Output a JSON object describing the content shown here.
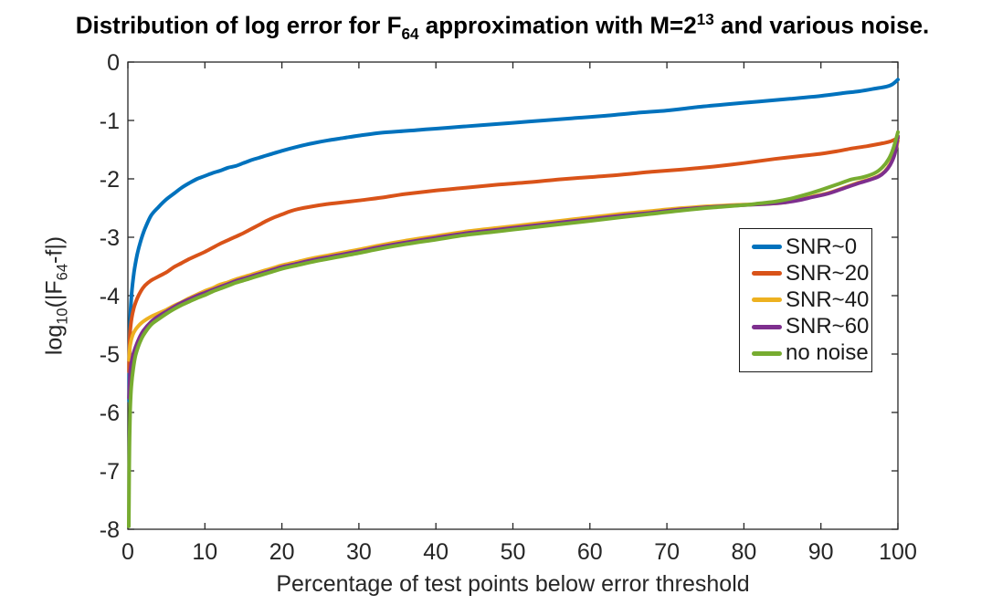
{
  "figure": {
    "title": {
      "pre": "Distribution of log error for F",
      "sub1": "64",
      "mid": " approximation with M=2",
      "sup1": "13",
      "post": " and various noise."
    },
    "xlabel": "Percentage of test points below error threshold",
    "ylabel": {
      "pre": "log",
      "sub1": "10",
      "mid": "(|F",
      "sub2": "64",
      "post": "-f|)"
    },
    "axis_color": "#262626",
    "background": "#ffffff"
  },
  "chart_data": {
    "type": "line",
    "title": "Distribution of log error for F_64 approximation with M=2^13 and various noise.",
    "xlabel": "Percentage of test points below error threshold",
    "ylabel": "log_10(|F_64-f|)",
    "xlim": [
      0,
      100
    ],
    "ylim": [
      -8,
      0
    ],
    "xticks": [
      0,
      10,
      20,
      30,
      40,
      50,
      60,
      70,
      80,
      90,
      100
    ],
    "yticks": [
      0,
      -1,
      -2,
      -3,
      -4,
      -5,
      -6,
      -7,
      -8
    ],
    "grid": false,
    "legend_position": "inside-right-middle",
    "line_width": 4,
    "series": [
      {
        "name": "SNR~0",
        "color": "#0072BD",
        "points": [
          [
            0.15,
            -5.8
          ],
          [
            0.2,
            -5.0
          ],
          [
            0.3,
            -4.4
          ],
          [
            0.5,
            -3.95
          ],
          [
            0.8,
            -3.6
          ],
          [
            1.2,
            -3.3
          ],
          [
            1.7,
            -3.05
          ],
          [
            2.2,
            -2.86
          ],
          [
            3,
            -2.63
          ],
          [
            4,
            -2.48
          ],
          [
            5,
            -2.35
          ],
          [
            6,
            -2.25
          ],
          [
            7,
            -2.15
          ],
          [
            8,
            -2.07
          ],
          [
            9,
            -2.0
          ],
          [
            10,
            -1.95
          ],
          [
            11,
            -1.9
          ],
          [
            12,
            -1.86
          ],
          [
            13,
            -1.81
          ],
          [
            14,
            -1.78
          ],
          [
            15,
            -1.73
          ],
          [
            16,
            -1.68
          ],
          [
            17,
            -1.64
          ],
          [
            18,
            -1.6
          ],
          [
            19,
            -1.56
          ],
          [
            20,
            -1.52
          ],
          [
            22,
            -1.45
          ],
          [
            24,
            -1.39
          ],
          [
            26,
            -1.34
          ],
          [
            28,
            -1.3
          ],
          [
            30,
            -1.26
          ],
          [
            33,
            -1.21
          ],
          [
            36,
            -1.18
          ],
          [
            38,
            -1.16
          ],
          [
            40,
            -1.14
          ],
          [
            43,
            -1.11
          ],
          [
            46,
            -1.08
          ],
          [
            50,
            -1.04
          ],
          [
            54,
            -1.0
          ],
          [
            58,
            -0.96
          ],
          [
            62,
            -0.92
          ],
          [
            66,
            -0.87
          ],
          [
            70,
            -0.83
          ],
          [
            74,
            -0.77
          ],
          [
            78,
            -0.72
          ],
          [
            82,
            -0.675
          ],
          [
            86,
            -0.63
          ],
          [
            90,
            -0.58
          ],
          [
            93,
            -0.53
          ],
          [
            95,
            -0.5
          ],
          [
            97,
            -0.455
          ],
          [
            98.5,
            -0.42
          ],
          [
            99.3,
            -0.38
          ],
          [
            100,
            -0.3
          ]
        ]
      },
      {
        "name": "SNR~20",
        "color": "#D95319",
        "points": [
          [
            0.15,
            -5.3
          ],
          [
            0.2,
            -4.9
          ],
          [
            0.3,
            -4.6
          ],
          [
            0.5,
            -4.38
          ],
          [
            0.8,
            -4.2
          ],
          [
            1.2,
            -4.05
          ],
          [
            1.7,
            -3.92
          ],
          [
            2.2,
            -3.83
          ],
          [
            3,
            -3.74
          ],
          [
            4,
            -3.67
          ],
          [
            5,
            -3.6
          ],
          [
            6,
            -3.51
          ],
          [
            7,
            -3.44
          ],
          [
            8,
            -3.37
          ],
          [
            9,
            -3.31
          ],
          [
            10,
            -3.25
          ],
          [
            11,
            -3.18
          ],
          [
            12,
            -3.11
          ],
          [
            13,
            -3.05
          ],
          [
            14,
            -2.99
          ],
          [
            15,
            -2.93
          ],
          [
            16,
            -2.86
          ],
          [
            17,
            -2.79
          ],
          [
            18,
            -2.72
          ],
          [
            19,
            -2.66
          ],
          [
            20,
            -2.61
          ],
          [
            21,
            -2.56
          ],
          [
            22,
            -2.52
          ],
          [
            24,
            -2.47
          ],
          [
            26,
            -2.43
          ],
          [
            28,
            -2.4
          ],
          [
            30,
            -2.37
          ],
          [
            33,
            -2.32
          ],
          [
            36,
            -2.26
          ],
          [
            40,
            -2.2
          ],
          [
            44,
            -2.15
          ],
          [
            48,
            -2.1
          ],
          [
            52,
            -2.06
          ],
          [
            56,
            -2.01
          ],
          [
            60,
            -1.97
          ],
          [
            64,
            -1.93
          ],
          [
            68,
            -1.88
          ],
          [
            72,
            -1.84
          ],
          [
            76,
            -1.79
          ],
          [
            80,
            -1.73
          ],
          [
            84,
            -1.66
          ],
          [
            88,
            -1.6
          ],
          [
            90,
            -1.57
          ],
          [
            92,
            -1.53
          ],
          [
            94,
            -1.48
          ],
          [
            96,
            -1.44
          ],
          [
            98,
            -1.39
          ],
          [
            99,
            -1.36
          ],
          [
            100,
            -1.3
          ]
        ]
      },
      {
        "name": "SNR~40",
        "color": "#EDB120",
        "points": [
          [
            0.15,
            -5.1
          ],
          [
            0.3,
            -4.85
          ],
          [
            0.6,
            -4.68
          ],
          [
            1,
            -4.58
          ],
          [
            1.5,
            -4.5
          ],
          [
            2,
            -4.44
          ],
          [
            3,
            -4.36
          ],
          [
            4,
            -4.3
          ],
          [
            5,
            -4.24
          ],
          [
            6,
            -4.17
          ],
          [
            7,
            -4.11
          ],
          [
            8,
            -4.04
          ],
          [
            9,
            -3.98
          ],
          [
            10,
            -3.92
          ],
          [
            11,
            -3.87
          ],
          [
            12,
            -3.81
          ],
          [
            13,
            -3.77
          ],
          [
            14,
            -3.72
          ],
          [
            15,
            -3.68
          ],
          [
            16,
            -3.64
          ],
          [
            17,
            -3.6
          ],
          [
            18,
            -3.56
          ],
          [
            19,
            -3.52
          ],
          [
            20,
            -3.48
          ],
          [
            22,
            -3.42
          ],
          [
            24,
            -3.36
          ],
          [
            26,
            -3.31
          ],
          [
            28,
            -3.26
          ],
          [
            30,
            -3.21
          ],
          [
            33,
            -3.13
          ],
          [
            36,
            -3.06
          ],
          [
            40,
            -2.98
          ],
          [
            44,
            -2.9
          ],
          [
            48,
            -2.84
          ],
          [
            52,
            -2.78
          ],
          [
            56,
            -2.72
          ],
          [
            60,
            -2.66
          ],
          [
            64,
            -2.6
          ],
          [
            68,
            -2.55
          ],
          [
            72,
            -2.5
          ],
          [
            76,
            -2.465
          ],
          [
            80,
            -2.44
          ],
          [
            83,
            -2.43
          ],
          [
            85,
            -2.41
          ],
          [
            87,
            -2.36
          ],
          [
            89,
            -2.3
          ],
          [
            91,
            -2.24
          ],
          [
            93,
            -2.15
          ],
          [
            95,
            -2.06
          ],
          [
            96.5,
            -2.0
          ],
          [
            97.5,
            -1.95
          ],
          [
            98.3,
            -1.87
          ],
          [
            99,
            -1.74
          ],
          [
            99.6,
            -1.55
          ],
          [
            100,
            -1.35
          ]
        ]
      },
      {
        "name": "SNR~60",
        "color": "#7E2F8E",
        "points": [
          [
            0.15,
            -5.75
          ],
          [
            0.3,
            -5.3
          ],
          [
            0.6,
            -5.05
          ],
          [
            1,
            -4.88
          ],
          [
            1.5,
            -4.72
          ],
          [
            2,
            -4.6
          ],
          [
            3,
            -4.45
          ],
          [
            4,
            -4.35
          ],
          [
            5,
            -4.27
          ],
          [
            6,
            -4.19
          ],
          [
            7,
            -4.12
          ],
          [
            8,
            -4.06
          ],
          [
            9,
            -4.0
          ],
          [
            10,
            -3.95
          ],
          [
            11,
            -3.9
          ],
          [
            12,
            -3.85
          ],
          [
            13,
            -3.8
          ],
          [
            14,
            -3.75
          ],
          [
            15,
            -3.71
          ],
          [
            16,
            -3.67
          ],
          [
            17,
            -3.63
          ],
          [
            18,
            -3.59
          ],
          [
            19,
            -3.55
          ],
          [
            20,
            -3.51
          ],
          [
            22,
            -3.45
          ],
          [
            24,
            -3.39
          ],
          [
            26,
            -3.34
          ],
          [
            28,
            -3.29
          ],
          [
            30,
            -3.24
          ],
          [
            33,
            -3.16
          ],
          [
            36,
            -3.09
          ],
          [
            40,
            -3.01
          ],
          [
            44,
            -2.93
          ],
          [
            48,
            -2.87
          ],
          [
            52,
            -2.81
          ],
          [
            56,
            -2.75
          ],
          [
            60,
            -2.69
          ],
          [
            64,
            -2.63
          ],
          [
            68,
            -2.58
          ],
          [
            72,
            -2.52
          ],
          [
            76,
            -2.48
          ],
          [
            80,
            -2.45
          ],
          [
            83,
            -2.43
          ],
          [
            85,
            -2.41
          ],
          [
            87,
            -2.37
          ],
          [
            89,
            -2.31
          ],
          [
            91,
            -2.25
          ],
          [
            93,
            -2.16
          ],
          [
            95,
            -2.07
          ],
          [
            96.5,
            -2.01
          ],
          [
            97.5,
            -1.96
          ],
          [
            98.3,
            -1.88
          ],
          [
            99,
            -1.76
          ],
          [
            99.6,
            -1.57
          ],
          [
            100,
            -1.27
          ]
        ]
      },
      {
        "name": "no noise",
        "color": "#77AC30",
        "points": [
          [
            0.12,
            -7.95
          ],
          [
            0.15,
            -7.3
          ],
          [
            0.2,
            -6.6
          ],
          [
            0.3,
            -5.95
          ],
          [
            0.45,
            -5.55
          ],
          [
            0.7,
            -5.25
          ],
          [
            1,
            -5.02
          ],
          [
            1.5,
            -4.82
          ],
          [
            2,
            -4.68
          ],
          [
            3,
            -4.5
          ],
          [
            4,
            -4.4
          ],
          [
            5,
            -4.31
          ],
          [
            6,
            -4.23
          ],
          [
            7,
            -4.16
          ],
          [
            8,
            -4.1
          ],
          [
            9,
            -4.04
          ],
          [
            10,
            -3.99
          ],
          [
            11,
            -3.93
          ],
          [
            12,
            -3.88
          ],
          [
            13,
            -3.83
          ],
          [
            14,
            -3.78
          ],
          [
            15,
            -3.74
          ],
          [
            16,
            -3.7
          ],
          [
            17,
            -3.66
          ],
          [
            18,
            -3.62
          ],
          [
            19,
            -3.58
          ],
          [
            20,
            -3.54
          ],
          [
            22,
            -3.48
          ],
          [
            24,
            -3.42
          ],
          [
            26,
            -3.37
          ],
          [
            28,
            -3.32
          ],
          [
            30,
            -3.27
          ],
          [
            33,
            -3.19
          ],
          [
            36,
            -3.12
          ],
          [
            40,
            -3.04
          ],
          [
            44,
            -2.96
          ],
          [
            48,
            -2.9
          ],
          [
            52,
            -2.84
          ],
          [
            56,
            -2.78
          ],
          [
            60,
            -2.72
          ],
          [
            64,
            -2.66
          ],
          [
            68,
            -2.6
          ],
          [
            72,
            -2.54
          ],
          [
            76,
            -2.49
          ],
          [
            80,
            -2.45
          ],
          [
            82,
            -2.42
          ],
          [
            84,
            -2.39
          ],
          [
            86,
            -2.34
          ],
          [
            88,
            -2.27
          ],
          [
            90,
            -2.19
          ],
          [
            92,
            -2.1
          ],
          [
            94,
            -2.01
          ],
          [
            95.5,
            -1.97
          ],
          [
            97,
            -1.9
          ],
          [
            98,
            -1.8
          ],
          [
            98.8,
            -1.66
          ],
          [
            99.4,
            -1.48
          ],
          [
            100,
            -1.2
          ]
        ]
      }
    ]
  }
}
